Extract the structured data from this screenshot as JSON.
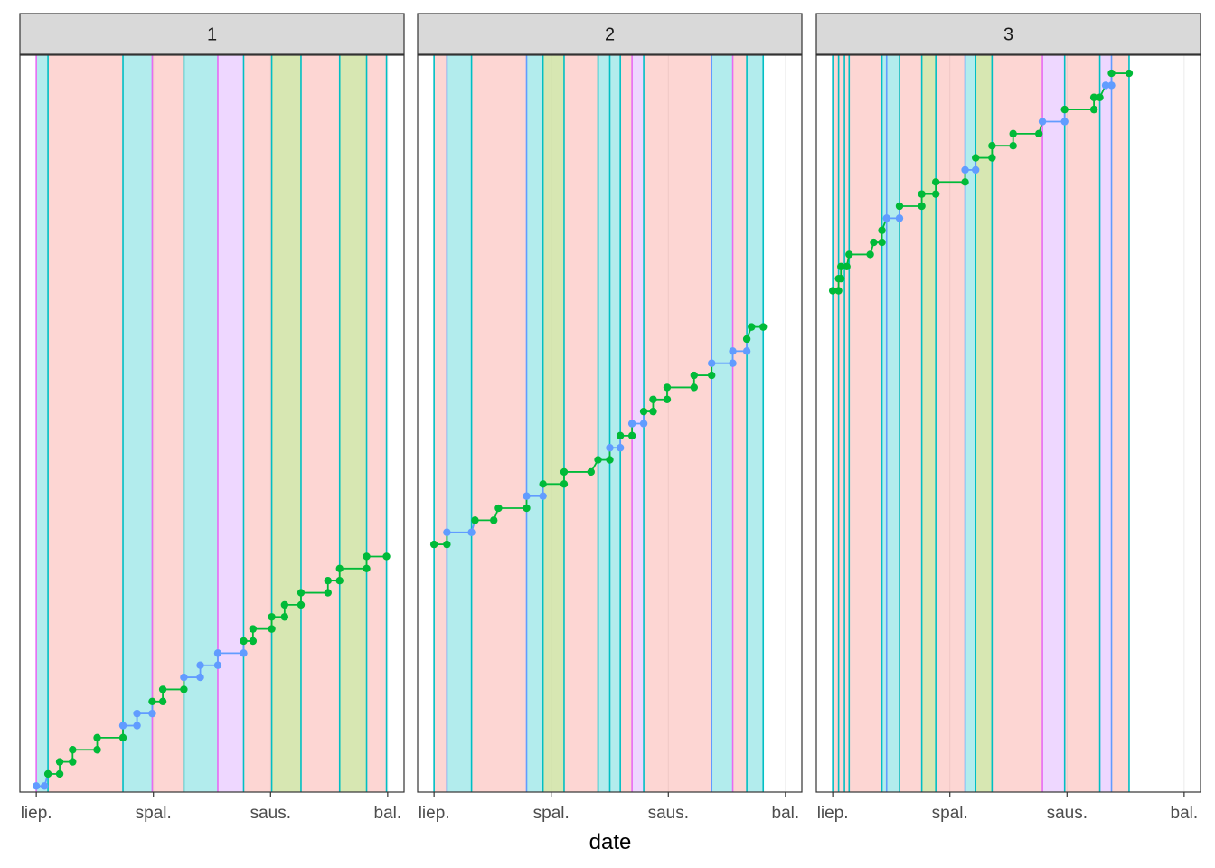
{
  "chart_data": {
    "type": "faceted-line",
    "xlabel": "date",
    "ylabel": "",
    "x_ticks": [
      "liep.",
      "spal.",
      "saus.",
      "bal."
    ],
    "x_tick_positions": [
      0,
      1,
      2,
      3
    ],
    "xlim": [
      -0.14,
      3.14
    ],
    "ylim": [
      -0.5,
      60.5
    ],
    "grid": "vertical major only",
    "legend": "none",
    "colors": {
      "strip_bg": "#d9d9d9",
      "panel_border": "#333333",
      "grid": "#ebebeb",
      "salmon": "#F8766D",
      "green": "#7CAE00",
      "cyan": "#00BFC4",
      "purple": "#C77CFF",
      "line_green": "#00BA38",
      "line_blue": "#619CFF",
      "rule_teal": "#00BFC4",
      "rule_magenta": "#E76BF3",
      "rule_blue": "#619CFF"
    },
    "facets": [
      {
        "label": "1",
        "bands": [
          {
            "x0": 0.0,
            "x1": 0.1,
            "color": "cyan"
          },
          {
            "x0": 0.1,
            "x1": 0.74,
            "color": "salmon"
          },
          {
            "x0": 0.74,
            "x1": 0.99,
            "color": "cyan"
          },
          {
            "x0": 0.99,
            "x1": 1.26,
            "color": "salmon"
          },
          {
            "x0": 1.26,
            "x1": 1.55,
            "color": "cyan"
          },
          {
            "x0": 1.55,
            "x1": 1.77,
            "color": "purple"
          },
          {
            "x0": 1.77,
            "x1": 2.01,
            "color": "salmon"
          },
          {
            "x0": 2.01,
            "x1": 2.26,
            "color": "green"
          },
          {
            "x0": 2.26,
            "x1": 2.59,
            "color": "salmon"
          },
          {
            "x0": 2.59,
            "x1": 2.82,
            "color": "green"
          },
          {
            "x0": 2.82,
            "x1": 2.99,
            "color": "salmon"
          }
        ],
        "rules": [
          {
            "x": 0.0,
            "color": "rule_magenta"
          },
          {
            "x": 0.1,
            "color": "rule_teal"
          },
          {
            "x": 0.74,
            "color": "rule_teal"
          },
          {
            "x": 0.99,
            "color": "rule_magenta"
          },
          {
            "x": 1.26,
            "color": "rule_teal"
          },
          {
            "x": 1.55,
            "color": "rule_magenta"
          },
          {
            "x": 1.77,
            "color": "rule_teal"
          },
          {
            "x": 2.01,
            "color": "rule_teal"
          },
          {
            "x": 2.26,
            "color": "rule_teal"
          },
          {
            "x": 2.59,
            "color": "rule_teal"
          },
          {
            "x": 2.82,
            "color": "rule_teal"
          },
          {
            "x": 2.99,
            "color": "rule_teal"
          }
        ],
        "points": [
          {
            "x": 0.0,
            "y": 0,
            "c": "blue"
          },
          {
            "x": 0.07,
            "y": 0,
            "c": "blue"
          },
          {
            "x": 0.1,
            "y": 1,
            "c": "green"
          },
          {
            "x": 0.2,
            "y": 1,
            "c": "green"
          },
          {
            "x": 0.2,
            "y": 2,
            "c": "green"
          },
          {
            "x": 0.31,
            "y": 2,
            "c": "green"
          },
          {
            "x": 0.31,
            "y": 3,
            "c": "green"
          },
          {
            "x": 0.52,
            "y": 3,
            "c": "green"
          },
          {
            "x": 0.52,
            "y": 4,
            "c": "green"
          },
          {
            "x": 0.74,
            "y": 4,
            "c": "green"
          },
          {
            "x": 0.74,
            "y": 5,
            "c": "blue"
          },
          {
            "x": 0.86,
            "y": 5,
            "c": "blue"
          },
          {
            "x": 0.86,
            "y": 6,
            "c": "blue"
          },
          {
            "x": 0.99,
            "y": 6,
            "c": "blue"
          },
          {
            "x": 0.99,
            "y": 7,
            "c": "green"
          },
          {
            "x": 1.08,
            "y": 7,
            "c": "green"
          },
          {
            "x": 1.08,
            "y": 8,
            "c": "green"
          },
          {
            "x": 1.26,
            "y": 8,
            "c": "green"
          },
          {
            "x": 1.26,
            "y": 9,
            "c": "blue"
          },
          {
            "x": 1.4,
            "y": 9,
            "c": "blue"
          },
          {
            "x": 1.4,
            "y": 10,
            "c": "blue"
          },
          {
            "x": 1.55,
            "y": 10,
            "c": "blue"
          },
          {
            "x": 1.55,
            "y": 11,
            "c": "blue"
          },
          {
            "x": 1.77,
            "y": 11,
            "c": "blue"
          },
          {
            "x": 1.77,
            "y": 12,
            "c": "green"
          },
          {
            "x": 1.85,
            "y": 12,
            "c": "green"
          },
          {
            "x": 1.85,
            "y": 13,
            "c": "green"
          },
          {
            "x": 2.01,
            "y": 13,
            "c": "green"
          },
          {
            "x": 2.01,
            "y": 14,
            "c": "green"
          },
          {
            "x": 2.12,
            "y": 14,
            "c": "green"
          },
          {
            "x": 2.12,
            "y": 15,
            "c": "green"
          },
          {
            "x": 2.26,
            "y": 15,
            "c": "green"
          },
          {
            "x": 2.26,
            "y": 16,
            "c": "green"
          },
          {
            "x": 2.49,
            "y": 16,
            "c": "green"
          },
          {
            "x": 2.49,
            "y": 17,
            "c": "green"
          },
          {
            "x": 2.59,
            "y": 17,
            "c": "green"
          },
          {
            "x": 2.59,
            "y": 18,
            "c": "green"
          },
          {
            "x": 2.82,
            "y": 18,
            "c": "green"
          },
          {
            "x": 2.82,
            "y": 19,
            "c": "green"
          },
          {
            "x": 2.99,
            "y": 19,
            "c": "green"
          }
        ]
      },
      {
        "label": "2",
        "bands": [
          {
            "x0": 0.0,
            "x1": 0.11,
            "color": "salmon"
          },
          {
            "x0": 0.11,
            "x1": 0.32,
            "color": "cyan"
          },
          {
            "x0": 0.32,
            "x1": 0.79,
            "color": "salmon"
          },
          {
            "x0": 0.79,
            "x1": 0.93,
            "color": "cyan"
          },
          {
            "x0": 0.93,
            "x1": 1.11,
            "color": "green"
          },
          {
            "x0": 1.11,
            "x1": 1.4,
            "color": "salmon"
          },
          {
            "x0": 1.4,
            "x1": 1.59,
            "color": "cyan"
          },
          {
            "x0": 1.59,
            "x1": 1.69,
            "color": "salmon"
          },
          {
            "x0": 1.69,
            "x1": 1.79,
            "color": "purple"
          },
          {
            "x0": 1.79,
            "x1": 2.37,
            "color": "salmon"
          },
          {
            "x0": 2.37,
            "x1": 2.55,
            "color": "cyan"
          },
          {
            "x0": 2.55,
            "x1": 2.67,
            "color": "salmon"
          },
          {
            "x0": 2.67,
            "x1": 2.81,
            "color": "cyan"
          }
        ],
        "rules": [
          {
            "x": 0.0,
            "color": "rule_teal"
          },
          {
            "x": 0.11,
            "color": "rule_blue"
          },
          {
            "x": 0.32,
            "color": "rule_teal"
          },
          {
            "x": 0.79,
            "color": "rule_blue"
          },
          {
            "x": 0.93,
            "color": "rule_teal"
          },
          {
            "x": 1.11,
            "color": "rule_teal"
          },
          {
            "x": 1.4,
            "color": "rule_teal"
          },
          {
            "x": 1.5,
            "color": "rule_teal"
          },
          {
            "x": 1.59,
            "color": "rule_teal"
          },
          {
            "x": 1.69,
            "color": "rule_magenta"
          },
          {
            "x": 1.79,
            "color": "rule_teal"
          },
          {
            "x": 2.37,
            "color": "rule_blue"
          },
          {
            "x": 2.55,
            "color": "rule_magenta"
          },
          {
            "x": 2.67,
            "color": "rule_teal"
          },
          {
            "x": 2.81,
            "color": "rule_teal"
          }
        ],
        "points": [
          {
            "x": 0.0,
            "y": 20,
            "c": "green"
          },
          {
            "x": 0.11,
            "y": 20,
            "c": "green"
          },
          {
            "x": 0.11,
            "y": 21,
            "c": "blue"
          },
          {
            "x": 0.32,
            "y": 21,
            "c": "blue"
          },
          {
            "x": 0.35,
            "y": 22,
            "c": "green"
          },
          {
            "x": 0.51,
            "y": 22,
            "c": "green"
          },
          {
            "x": 0.55,
            "y": 23,
            "c": "green"
          },
          {
            "x": 0.79,
            "y": 23,
            "c": "green"
          },
          {
            "x": 0.79,
            "y": 24,
            "c": "blue"
          },
          {
            "x": 0.93,
            "y": 24,
            "c": "blue"
          },
          {
            "x": 0.93,
            "y": 25,
            "c": "green"
          },
          {
            "x": 1.11,
            "y": 25,
            "c": "green"
          },
          {
            "x": 1.11,
            "y": 26,
            "c": "green"
          },
          {
            "x": 1.34,
            "y": 26,
            "c": "green"
          },
          {
            "x": 1.4,
            "y": 27,
            "c": "green"
          },
          {
            "x": 1.5,
            "y": 27,
            "c": "green"
          },
          {
            "x": 1.5,
            "y": 28,
            "c": "blue"
          },
          {
            "x": 1.59,
            "y": 28,
            "c": "blue"
          },
          {
            "x": 1.59,
            "y": 29,
            "c": "green"
          },
          {
            "x": 1.69,
            "y": 29,
            "c": "green"
          },
          {
            "x": 1.69,
            "y": 30,
            "c": "blue"
          },
          {
            "x": 1.79,
            "y": 30,
            "c": "blue"
          },
          {
            "x": 1.79,
            "y": 31,
            "c": "green"
          },
          {
            "x": 1.87,
            "y": 31,
            "c": "green"
          },
          {
            "x": 1.87,
            "y": 32,
            "c": "green"
          },
          {
            "x": 1.99,
            "y": 32,
            "c": "green"
          },
          {
            "x": 1.99,
            "y": 33,
            "c": "green"
          },
          {
            "x": 2.22,
            "y": 33,
            "c": "green"
          },
          {
            "x": 2.22,
            "y": 34,
            "c": "green"
          },
          {
            "x": 2.37,
            "y": 34,
            "c": "green"
          },
          {
            "x": 2.37,
            "y": 35,
            "c": "blue"
          },
          {
            "x": 2.55,
            "y": 35,
            "c": "blue"
          },
          {
            "x": 2.55,
            "y": 36,
            "c": "blue"
          },
          {
            "x": 2.67,
            "y": 36,
            "c": "blue"
          },
          {
            "x": 2.67,
            "y": 37,
            "c": "green"
          },
          {
            "x": 2.71,
            "y": 38,
            "c": "green"
          },
          {
            "x": 2.81,
            "y": 38,
            "c": "green"
          }
        ]
      },
      {
        "label": "3",
        "bands": [
          {
            "x0": 0.0,
            "x1": 0.14,
            "color": "salmon"
          },
          {
            "x0": 0.14,
            "x1": 0.42,
            "color": "salmon"
          },
          {
            "x0": 0.42,
            "x1": 0.57,
            "color": "cyan"
          },
          {
            "x0": 0.57,
            "x1": 0.76,
            "color": "salmon"
          },
          {
            "x0": 0.76,
            "x1": 0.88,
            "color": "green"
          },
          {
            "x0": 0.88,
            "x1": 1.13,
            "color": "salmon"
          },
          {
            "x0": 1.13,
            "x1": 1.22,
            "color": "cyan"
          },
          {
            "x0": 1.22,
            "x1": 1.36,
            "color": "green"
          },
          {
            "x0": 1.36,
            "x1": 1.79,
            "color": "salmon"
          },
          {
            "x0": 1.79,
            "x1": 1.98,
            "color": "purple"
          },
          {
            "x0": 1.98,
            "x1": 2.28,
            "color": "salmon"
          },
          {
            "x0": 2.28,
            "x1": 2.38,
            "color": "purple"
          },
          {
            "x0": 2.38,
            "x1": 2.53,
            "color": "salmon"
          }
        ],
        "rules": [
          {
            "x": 0.0,
            "color": "rule_teal"
          },
          {
            "x": 0.05,
            "color": "rule_teal"
          },
          {
            "x": 0.1,
            "color": "rule_teal"
          },
          {
            "x": 0.14,
            "color": "rule_teal"
          },
          {
            "x": 0.42,
            "color": "rule_teal"
          },
          {
            "x": 0.46,
            "color": "rule_blue"
          },
          {
            "x": 0.57,
            "color": "rule_teal"
          },
          {
            "x": 0.76,
            "color": "rule_teal"
          },
          {
            "x": 0.88,
            "color": "rule_teal"
          },
          {
            "x": 1.13,
            "color": "rule_blue"
          },
          {
            "x": 1.22,
            "color": "rule_teal"
          },
          {
            "x": 1.36,
            "color": "rule_teal"
          },
          {
            "x": 1.79,
            "color": "rule_magenta"
          },
          {
            "x": 1.98,
            "color": "rule_teal"
          },
          {
            "x": 2.28,
            "color": "rule_teal"
          },
          {
            "x": 2.38,
            "color": "rule_blue"
          },
          {
            "x": 2.53,
            "color": "rule_teal"
          }
        ],
        "points": [
          {
            "x": 0.0,
            "y": 41,
            "c": "green"
          },
          {
            "x": 0.05,
            "y": 41,
            "c": "green"
          },
          {
            "x": 0.05,
            "y": 42,
            "c": "green"
          },
          {
            "x": 0.07,
            "y": 42,
            "c": "green"
          },
          {
            "x": 0.07,
            "y": 43,
            "c": "green"
          },
          {
            "x": 0.12,
            "y": 43,
            "c": "green"
          },
          {
            "x": 0.14,
            "y": 44,
            "c": "green"
          },
          {
            "x": 0.32,
            "y": 44,
            "c": "green"
          },
          {
            "x": 0.35,
            "y": 45,
            "c": "green"
          },
          {
            "x": 0.42,
            "y": 45,
            "c": "green"
          },
          {
            "x": 0.42,
            "y": 46,
            "c": "green"
          },
          {
            "x": 0.46,
            "y": 47,
            "c": "blue"
          },
          {
            "x": 0.57,
            "y": 47,
            "c": "blue"
          },
          {
            "x": 0.57,
            "y": 48,
            "c": "green"
          },
          {
            "x": 0.76,
            "y": 48,
            "c": "green"
          },
          {
            "x": 0.76,
            "y": 49,
            "c": "green"
          },
          {
            "x": 0.88,
            "y": 49,
            "c": "green"
          },
          {
            "x": 0.88,
            "y": 50,
            "c": "green"
          },
          {
            "x": 1.13,
            "y": 50,
            "c": "green"
          },
          {
            "x": 1.13,
            "y": 51,
            "c": "blue"
          },
          {
            "x": 1.22,
            "y": 51,
            "c": "blue"
          },
          {
            "x": 1.22,
            "y": 52,
            "c": "green"
          },
          {
            "x": 1.36,
            "y": 52,
            "c": "green"
          },
          {
            "x": 1.36,
            "y": 53,
            "c": "green"
          },
          {
            "x": 1.54,
            "y": 53,
            "c": "green"
          },
          {
            "x": 1.54,
            "y": 54,
            "c": "green"
          },
          {
            "x": 1.76,
            "y": 54,
            "c": "green"
          },
          {
            "x": 1.79,
            "y": 55,
            "c": "blue"
          },
          {
            "x": 1.98,
            "y": 55,
            "c": "blue"
          },
          {
            "x": 1.98,
            "y": 56,
            "c": "green"
          },
          {
            "x": 2.23,
            "y": 56,
            "c": "green"
          },
          {
            "x": 2.23,
            "y": 57,
            "c": "green"
          },
          {
            "x": 2.28,
            "y": 57,
            "c": "green"
          },
          {
            "x": 2.33,
            "y": 58,
            "c": "blue"
          },
          {
            "x": 2.38,
            "y": 58,
            "c": "blue"
          },
          {
            "x": 2.38,
            "y": 59,
            "c": "green"
          },
          {
            "x": 2.53,
            "y": 59,
            "c": "green"
          }
        ]
      }
    ]
  }
}
